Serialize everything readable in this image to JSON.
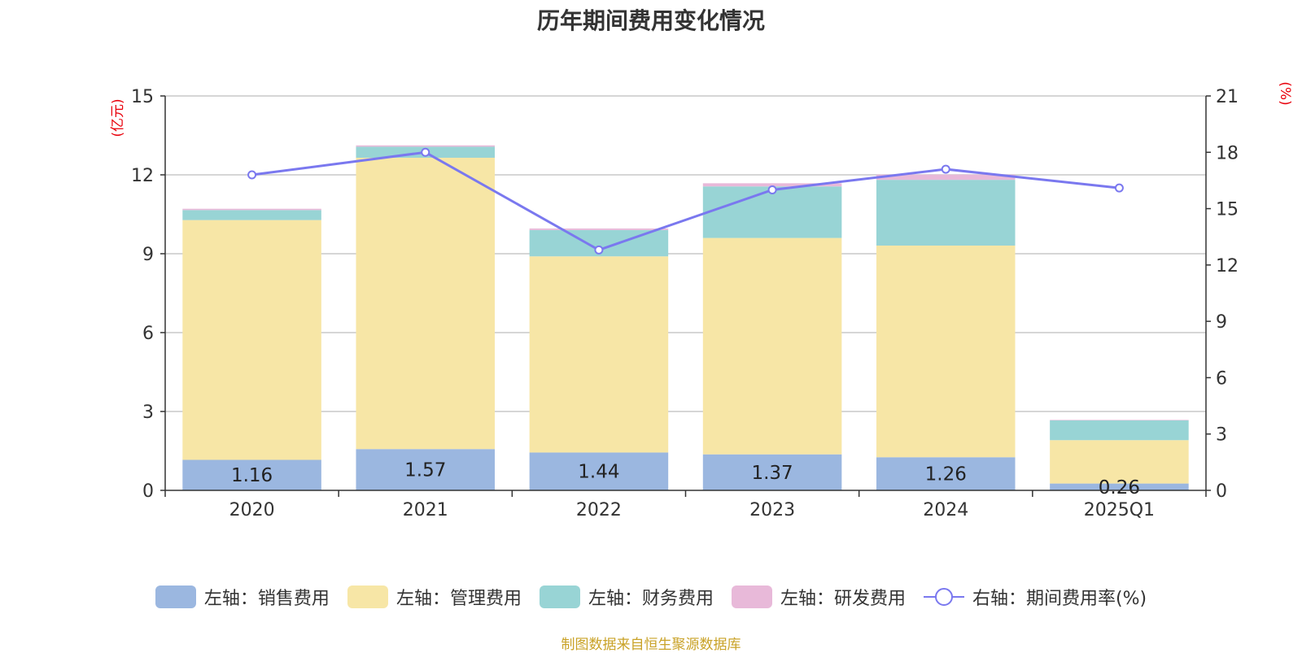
{
  "colors": {
    "sales": "#9bb7e0",
    "admin": "#f7e6a6",
    "finance": "#98d4d5",
    "rnd": "#e8b9d9",
    "rate": "#7a78ef",
    "axis_unit": "#e8000b",
    "source": "#c9a227"
  },
  "chart_data": {
    "type": "bar",
    "stacked": true,
    "title": "历年期间费用变化情况",
    "categories": [
      "2020",
      "2021",
      "2022",
      "2023",
      "2024",
      "2025Q1"
    ],
    "series": [
      {
        "name": "左轴：销售费用",
        "key": "sales",
        "axis": "left",
        "type": "bar",
        "values": [
          1.16,
          1.57,
          1.44,
          1.37,
          1.26,
          0.26
        ]
      },
      {
        "name": "左轴：管理费用",
        "key": "admin",
        "axis": "left",
        "type": "bar",
        "values": [
          9.12,
          11.08,
          7.46,
          8.23,
          8.05,
          1.65
        ]
      },
      {
        "name": "左轴：财务费用",
        "key": "finance",
        "axis": "left",
        "type": "bar",
        "values": [
          0.38,
          0.42,
          1.0,
          1.96,
          2.5,
          0.75
        ]
      },
      {
        "name": "左轴：研发费用",
        "key": "rnd",
        "axis": "left",
        "type": "bar",
        "values": [
          0.05,
          0.05,
          0.06,
          0.12,
          0.2,
          0.02
        ]
      },
      {
        "name": "右轴：期间费用率(%)",
        "key": "rate",
        "axis": "right",
        "type": "line",
        "values": [
          16.8,
          18.0,
          12.8,
          16.0,
          17.1,
          16.1
        ]
      }
    ],
    "data_labels": [
      "1.16",
      "1.57",
      "1.44",
      "1.37",
      "1.26",
      "0.26"
    ],
    "left_axis": {
      "unit": "(亿元)",
      "min": 0,
      "max": 15,
      "ticks": [
        "0",
        "3",
        "6",
        "9",
        "12",
        "15"
      ]
    },
    "right_axis": {
      "unit": "(%)",
      "min": 0,
      "max": 21,
      "ticks": [
        "0",
        "3",
        "6",
        "9",
        "12",
        "15",
        "18",
        "21"
      ]
    },
    "grid": true,
    "legend_position": "bottom"
  },
  "source_text": "制图数据来自恒生聚源数据库"
}
